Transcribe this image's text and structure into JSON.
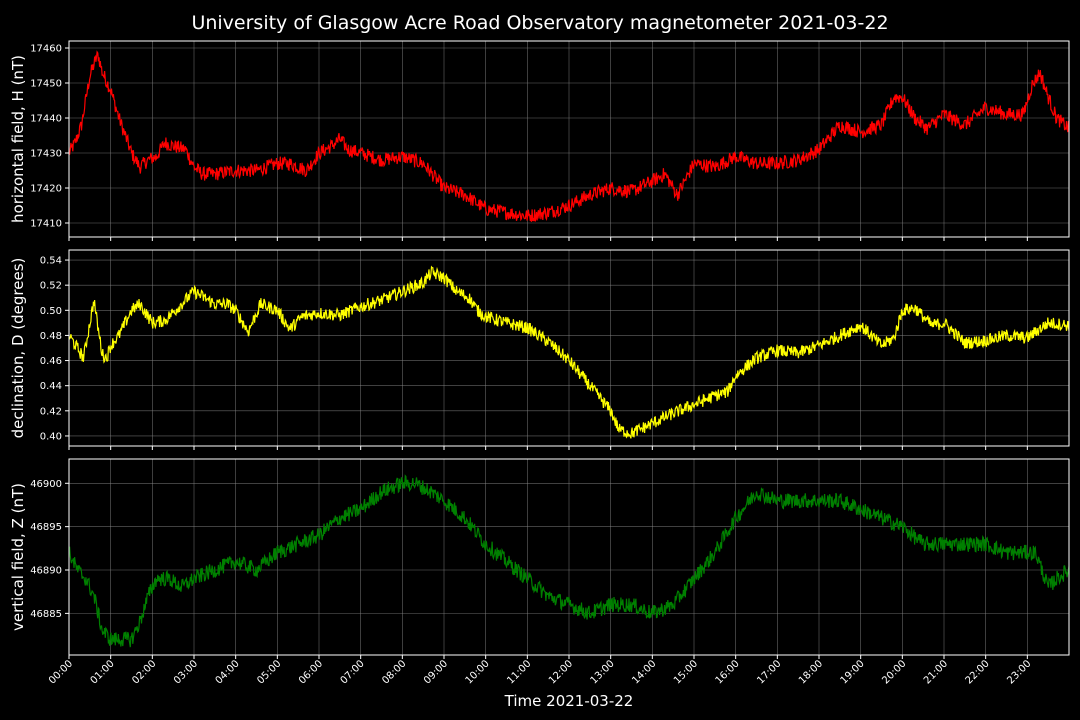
{
  "chart_data": {
    "type": "line",
    "title": "University of Glasgow Acre Road Observatory magnetometer 2021-03-22",
    "xlabel": "Time 2021-03-22",
    "xlim_hours": [
      0,
      24
    ],
    "x_tick_labels": [
      "00:00",
      "01:00",
      "02:00",
      "03:00",
      "04:00",
      "05:00",
      "06:00",
      "07:00",
      "08:00",
      "09:00",
      "10:00",
      "11:00",
      "12:00",
      "13:00",
      "14:00",
      "15:00",
      "16:00",
      "17:00",
      "18:00",
      "19:00",
      "20:00",
      "21:00",
      "22:00",
      "23:00"
    ],
    "grid": true,
    "background": "#000000",
    "panels": [
      {
        "ylabel": "horizontal field, H (nT)",
        "color": "#ff0000",
        "ylim": [
          17406,
          17462
        ],
        "yticks": [
          17410,
          17420,
          17430,
          17440,
          17450,
          17460
        ],
        "noise": 2.0,
        "series": {
          "x_hours": [
            0,
            0.15,
            0.3,
            0.5,
            0.65,
            0.7,
            0.8,
            1.0,
            1.2,
            1.5,
            1.7,
            1.9,
            2.1,
            2.3,
            2.5,
            2.8,
            3.0,
            3.2,
            3.5,
            4.0,
            4.5,
            5.0,
            5.3,
            5.7,
            6.0,
            6.3,
            6.5,
            6.7,
            7.0,
            7.5,
            8.0,
            8.5,
            9.0,
            9.5,
            10.0,
            10.5,
            11.0,
            11.5,
            12.0,
            12.5,
            13.0,
            13.5,
            14.0,
            14.3,
            14.6,
            15.0,
            15.5,
            16.0,
            16.5,
            17.0,
            17.5,
            18.0,
            18.5,
            19.0,
            19.5,
            19.8,
            20.0,
            20.3,
            20.6,
            21.0,
            21.5,
            22.0,
            22.5,
            22.9,
            23.1,
            23.3,
            23.5,
            23.7,
            24.0
          ],
          "values": [
            17430,
            17433,
            17438,
            17452,
            17457,
            17458,
            17453,
            17448,
            17440,
            17430,
            17426,
            17428,
            17429,
            17433,
            17432,
            17431,
            17426,
            17424,
            17424,
            17425,
            17425,
            17427,
            17427,
            17425,
            17430,
            17432,
            17434,
            17431,
            17430,
            17428,
            17429,
            17427,
            17420,
            17418,
            17414,
            17413,
            17412,
            17413,
            17415,
            17418,
            17420,
            17419,
            17422,
            17424,
            17418,
            17427,
            17426,
            17429,
            17427,
            17427,
            17428,
            17431,
            17438,
            17436,
            17438,
            17446,
            17446,
            17440,
            17437,
            17441,
            17438,
            17443,
            17441,
            17441,
            17449,
            17453,
            17446,
            17440,
            17437
          ]
        }
      },
      {
        "ylabel": "declination, D (degrees)",
        "color": "#ffff00",
        "ylim": [
          0.392,
          0.548
        ],
        "yticks": [
          0.4,
          0.42,
          0.44,
          0.46,
          0.48,
          0.5,
          0.52,
          0.54
        ],
        "noise": 0.005,
        "series": {
          "x_hours": [
            0,
            0.2,
            0.35,
            0.5,
            0.6,
            0.7,
            0.8,
            0.9,
            1.0,
            1.2,
            1.5,
            1.7,
            2.0,
            2.3,
            2.7,
            3.0,
            3.5,
            3.8,
            4.0,
            4.3,
            4.6,
            5.0,
            5.3,
            5.6,
            6.0,
            6.5,
            7.0,
            7.5,
            8.0,
            8.5,
            8.7,
            9.0,
            9.3,
            9.6,
            9.8,
            10.0,
            10.5,
            11.0,
            11.5,
            12.0,
            12.5,
            13.0,
            13.2,
            13.5,
            14.0,
            14.5,
            15.0,
            15.5,
            15.8,
            16.0,
            16.5,
            17.0,
            17.5,
            18.0,
            18.5,
            19.0,
            19.5,
            19.8,
            20.0,
            20.3,
            20.7,
            21.0,
            21.5,
            22.0,
            22.5,
            23.0,
            23.5,
            24.0
          ],
          "values": [
            0.48,
            0.47,
            0.462,
            0.49,
            0.508,
            0.485,
            0.465,
            0.462,
            0.472,
            0.48,
            0.5,
            0.505,
            0.49,
            0.492,
            0.505,
            0.515,
            0.505,
            0.505,
            0.5,
            0.483,
            0.505,
            0.5,
            0.485,
            0.495,
            0.498,
            0.496,
            0.503,
            0.508,
            0.515,
            0.522,
            0.53,
            0.526,
            0.515,
            0.51,
            0.5,
            0.495,
            0.49,
            0.486,
            0.475,
            0.46,
            0.44,
            0.42,
            0.405,
            0.402,
            0.41,
            0.418,
            0.425,
            0.432,
            0.435,
            0.448,
            0.462,
            0.468,
            0.466,
            0.472,
            0.48,
            0.488,
            0.472,
            0.478,
            0.5,
            0.502,
            0.488,
            0.49,
            0.474,
            0.476,
            0.48,
            0.478,
            0.49,
            0.488
          ]
        }
      },
      {
        "ylabel": "vertical field, Z (nT)",
        "color": "#008000",
        "ylim": [
          46880.2,
          46902.8
        ],
        "yticks": [
          46885,
          46890,
          46895,
          46900
        ],
        "noise": 0.9,
        "series": {
          "x_hours": [
            0,
            0.2,
            0.4,
            0.6,
            0.8,
            1.0,
            1.2,
            1.5,
            1.7,
            1.9,
            2.1,
            2.4,
            2.7,
            3.0,
            3.5,
            4.0,
            4.5,
            5.0,
            5.5,
            6.0,
            6.5,
            7.0,
            7.5,
            8.0,
            8.3,
            8.7,
            9.0,
            9.5,
            10.0,
            10.5,
            11.0,
            11.5,
            12.0,
            12.5,
            13.0,
            13.5,
            14.0,
            14.5,
            15.0,
            15.5,
            16.0,
            16.5,
            17.0,
            17.5,
            18.0,
            18.5,
            19.0,
            19.5,
            20.0,
            20.5,
            21.0,
            21.5,
            22.0,
            22.5,
            23.0,
            23.2,
            23.5,
            23.7,
            24.0
          ],
          "values": [
            46892,
            46890,
            46889,
            46887,
            46883,
            46882,
            46882,
            46882,
            46884,
            46887,
            46889,
            46889,
            46888,
            46889,
            46890,
            46891,
            46890,
            46892,
            46893,
            46894,
            46896,
            46897,
            46899,
            46900,
            46900,
            46899,
            46898,
            46896,
            46893,
            46891,
            46889,
            46887,
            46886,
            46885,
            46886,
            46886,
            46885,
            46886,
            46889,
            46892,
            46896,
            46899,
            46898,
            46898,
            46898,
            46898,
            46897,
            46896,
            46895,
            46893,
            46893,
            46893,
            46893,
            46892,
            46892,
            46892,
            46888,
            46889,
            46890
          ]
        }
      }
    ]
  }
}
